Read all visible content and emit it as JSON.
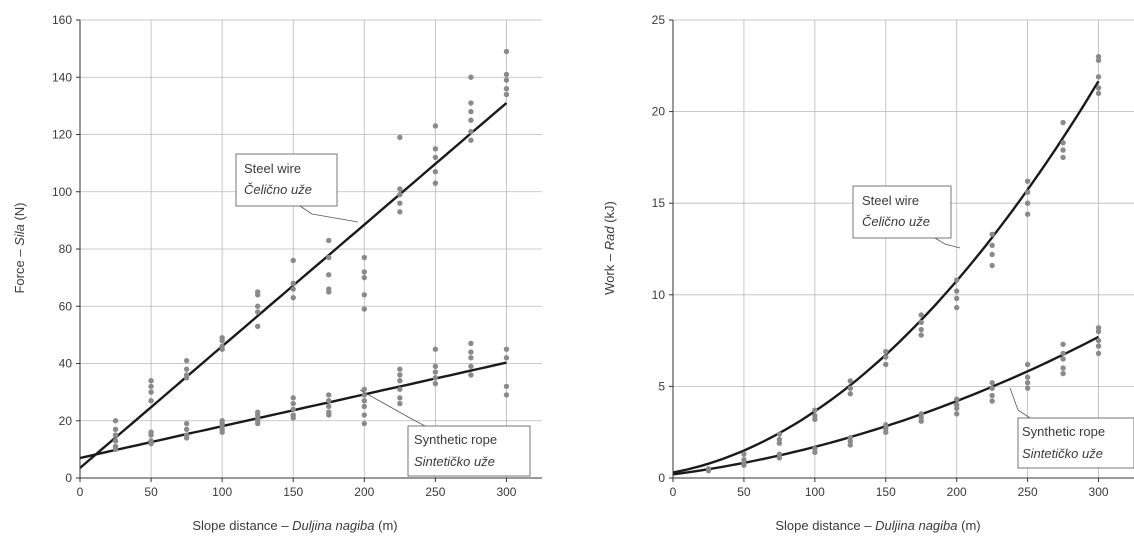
{
  "chart_data": [
    {
      "type": "scatter",
      "xlabel": "Slope distance – Duljina nagiba (m)",
      "xlabel_parts": [
        "Slope distance – ",
        "Duljina nagiba",
        " (m)"
      ],
      "ylabel": "Force – Sila (N)",
      "ylabel_parts": [
        "Force – ",
        "Sila",
        " (N)"
      ],
      "xlim": [
        0,
        300
      ],
      "ylim": [
        0,
        160
      ],
      "xticks": [
        0,
        50,
        100,
        150,
        200,
        250,
        300
      ],
      "yticks": [
        0,
        20,
        40,
        60,
        80,
        100,
        120,
        140,
        160
      ],
      "grid": true,
      "series": [
        {
          "name": "Steel wire",
          "name_alt": "Čelično uže",
          "fit": {
            "type": "linear",
            "intercept": 3.5,
            "slope": 0.425
          },
          "points": [
            [
              25,
              20
            ],
            [
              25,
              17
            ],
            [
              25,
              15
            ],
            [
              25,
              13
            ],
            [
              25,
              11
            ],
            [
              50,
              34
            ],
            [
              50,
              32
            ],
            [
              50,
              30
            ],
            [
              50,
              27
            ],
            [
              75,
              41
            ],
            [
              75,
              38
            ],
            [
              75,
              36
            ],
            [
              75,
              35
            ],
            [
              100,
              49
            ],
            [
              100,
              48
            ],
            [
              100,
              46
            ],
            [
              100,
              45
            ],
            [
              125,
              65
            ],
            [
              125,
              64
            ],
            [
              125,
              60
            ],
            [
              125,
              58
            ],
            [
              125,
              53
            ],
            [
              150,
              76
            ],
            [
              150,
              68
            ],
            [
              150,
              66
            ],
            [
              150,
              63
            ],
            [
              175,
              83
            ],
            [
              175,
              77
            ],
            [
              175,
              71
            ],
            [
              175,
              66
            ],
            [
              175,
              65
            ],
            [
              200,
              77
            ],
            [
              200,
              72
            ],
            [
              200,
              70
            ],
            [
              200,
              64
            ],
            [
              200,
              59
            ],
            [
              225,
              119
            ],
            [
              225,
              101
            ],
            [
              225,
              99
            ],
            [
              225,
              96
            ],
            [
              225,
              93
            ],
            [
              250,
              123
            ],
            [
              250,
              115
            ],
            [
              250,
              112
            ],
            [
              250,
              107
            ],
            [
              250,
              103
            ],
            [
              275,
              140
            ],
            [
              275,
              131
            ],
            [
              275,
              128
            ],
            [
              275,
              125
            ],
            [
              275,
              121
            ],
            [
              275,
              118
            ],
            [
              300,
              149
            ],
            [
              300,
              141
            ],
            [
              300,
              139
            ],
            [
              300,
              136
            ],
            [
              300,
              134
            ]
          ]
        },
        {
          "name": "Synthetic rope",
          "name_alt": "Sintetičko uže",
          "fit": {
            "type": "linear",
            "intercept": 7,
            "slope": 0.111
          },
          "points": [
            [
              25,
              15
            ],
            [
              25,
              13
            ],
            [
              25,
              11
            ],
            [
              25,
              10
            ],
            [
              50,
              16
            ],
            [
              50,
              15
            ],
            [
              50,
              13
            ],
            [
              50,
              12
            ],
            [
              75,
              19
            ],
            [
              75,
              17
            ],
            [
              75,
              15
            ],
            [
              75,
              14
            ],
            [
              100,
              20
            ],
            [
              100,
              19
            ],
            [
              100,
              18
            ],
            [
              100,
              17
            ],
            [
              100,
              16
            ],
            [
              125,
              23
            ],
            [
              125,
              22
            ],
            [
              125,
              21
            ],
            [
              125,
              20
            ],
            [
              125,
              19
            ],
            [
              150,
              28
            ],
            [
              150,
              26
            ],
            [
              150,
              24
            ],
            [
              150,
              22
            ],
            [
              150,
              21
            ],
            [
              175,
              29
            ],
            [
              175,
              27
            ],
            [
              175,
              25
            ],
            [
              175,
              23
            ],
            [
              175,
              22
            ],
            [
              200,
              31
            ],
            [
              200,
              29
            ],
            [
              200,
              27
            ],
            [
              200,
              25
            ],
            [
              200,
              22
            ],
            [
              200,
              19
            ],
            [
              225,
              38
            ],
            [
              225,
              36
            ],
            [
              225,
              34
            ],
            [
              225,
              31
            ],
            [
              225,
              28
            ],
            [
              225,
              26
            ],
            [
              250,
              45
            ],
            [
              250,
              39
            ],
            [
              250,
              37
            ],
            [
              250,
              35
            ],
            [
              250,
              33
            ],
            [
              275,
              47
            ],
            [
              275,
              44
            ],
            [
              275,
              42
            ],
            [
              275,
              39
            ],
            [
              275,
              36
            ],
            [
              300,
              45
            ],
            [
              300,
              42
            ],
            [
              300,
              32
            ],
            [
              300,
              29
            ]
          ]
        }
      ]
    },
    {
      "type": "scatter",
      "xlabel": "Slope distance – Duljina nagiba (m)",
      "xlabel_parts": [
        "Slope distance – ",
        "Duljina nagiba",
        " (m)"
      ],
      "ylabel": "Work – Rad (kJ)",
      "ylabel_parts": [
        "Work – ",
        "Rad",
        " (kJ)"
      ],
      "xlim": [
        0,
        300
      ],
      "ylim": [
        0,
        25
      ],
      "xticks": [
        0,
        50,
        100,
        150,
        200,
        250,
        300
      ],
      "yticks": [
        0,
        5,
        10,
        15,
        20,
        25
      ],
      "grid": true,
      "series": [
        {
          "name": "Steel wire",
          "name_alt": "Čelično uže",
          "fit": {
            "type": "quadratic",
            "c0": 0.3,
            "c1": 0.0145,
            "c2": 0.000189
          },
          "points": [
            [
              25,
              0.5
            ],
            [
              25,
              0.4
            ],
            [
              50,
              1.3
            ],
            [
              50,
              1.0
            ],
            [
              75,
              2.4
            ],
            [
              75,
              2.1
            ],
            [
              75,
              1.9
            ],
            [
              100,
              3.7
            ],
            [
              100,
              3.4
            ],
            [
              100,
              3.2
            ],
            [
              125,
              5.3
            ],
            [
              125,
              4.9
            ],
            [
              125,
              4.6
            ],
            [
              150,
              6.9
            ],
            [
              150,
              6.6
            ],
            [
              150,
              6.2
            ],
            [
              175,
              8.9
            ],
            [
              175,
              8.5
            ],
            [
              175,
              8.1
            ],
            [
              175,
              7.8
            ],
            [
              200,
              10.8
            ],
            [
              200,
              10.2
            ],
            [
              200,
              9.8
            ],
            [
              200,
              9.3
            ],
            [
              225,
              13.3
            ],
            [
              225,
              12.7
            ],
            [
              225,
              12.2
            ],
            [
              225,
              11.6
            ],
            [
              250,
              16.2
            ],
            [
              250,
              15.6
            ],
            [
              250,
              15.0
            ],
            [
              250,
              14.4
            ],
            [
              275,
              19.4
            ],
            [
              275,
              18.3
            ],
            [
              275,
              17.9
            ],
            [
              275,
              17.5
            ],
            [
              300,
              23.0
            ],
            [
              300,
              22.8
            ],
            [
              300,
              21.9
            ],
            [
              300,
              21.3
            ],
            [
              300,
              21.0
            ]
          ]
        },
        {
          "name": "Synthetic rope",
          "name_alt": "Sintetičko uže",
          "fit": {
            "type": "quadratic",
            "c0": 0.2,
            "c1": 0.01,
            "c2": 5e-05
          },
          "points": [
            [
              50,
              0.8
            ],
            [
              50,
              0.7
            ],
            [
              75,
              1.3
            ],
            [
              75,
              1.1
            ],
            [
              100,
              1.6
            ],
            [
              100,
              1.4
            ],
            [
              125,
              2.2
            ],
            [
              125,
              2.0
            ],
            [
              125,
              1.8
            ],
            [
              150,
              2.9
            ],
            [
              150,
              2.7
            ],
            [
              150,
              2.5
            ],
            [
              175,
              3.5
            ],
            [
              175,
              3.3
            ],
            [
              175,
              3.1
            ],
            [
              200,
              4.3
            ],
            [
              200,
              4.0
            ],
            [
              200,
              3.8
            ],
            [
              200,
              3.5
            ],
            [
              225,
              5.2
            ],
            [
              225,
              4.9
            ],
            [
              225,
              4.5
            ],
            [
              225,
              4.2
            ],
            [
              250,
              6.2
            ],
            [
              250,
              5.5
            ],
            [
              250,
              5.2
            ],
            [
              250,
              4.9
            ],
            [
              275,
              7.3
            ],
            [
              275,
              6.8
            ],
            [
              275,
              6.5
            ],
            [
              275,
              6.0
            ],
            [
              275,
              5.7
            ],
            [
              300,
              8.2
            ],
            [
              300,
              8.0
            ],
            [
              300,
              7.5
            ],
            [
              300,
              7.2
            ],
            [
              300,
              6.8
            ]
          ]
        }
      ]
    }
  ]
}
